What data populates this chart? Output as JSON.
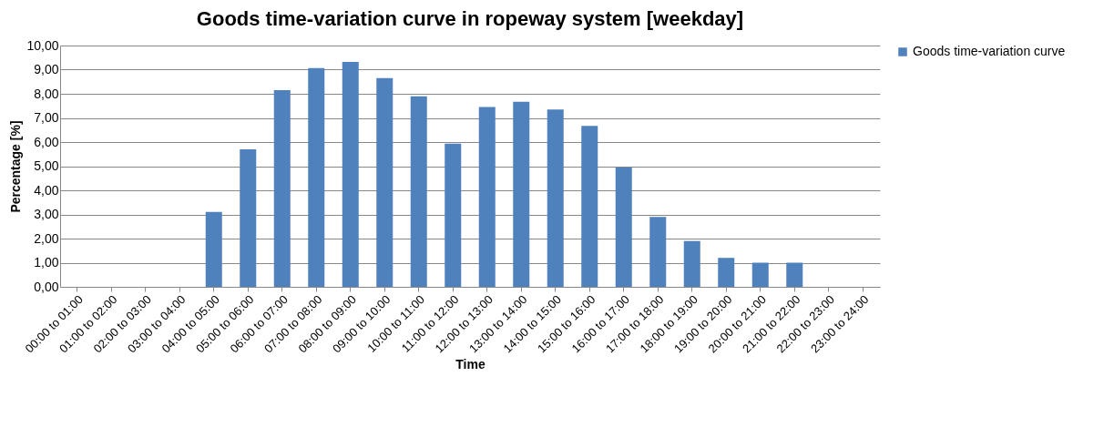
{
  "chart_data": {
    "type": "bar",
    "title": "Goods time-variation curve in ropeway system [weekday]",
    "xlabel": "Time",
    "ylabel": "Percentage [%]",
    "categories": [
      "00:00 to 01:00",
      "01:00 to 02:00",
      "02:00 to 03:00",
      "03:00 to 04:00",
      "04:00 to 05:00",
      "05:00 to 06:00",
      "06:00 to 07:00",
      "07:00 to 08:00",
      "08:00 to 09:00",
      "09:00 to 10:00",
      "10:00 to 11:00",
      "11:00 to 12:00",
      "12:00 to 13:00",
      "13:00 to 14:00",
      "14:00 to 15:00",
      "15:00 to 16:00",
      "16:00 to 17:00",
      "17:00 to 18:00",
      "18:00 to 19:00",
      "19:00 to 20:00",
      "20:00 to 21:00",
      "21:00 to 22:00",
      "22:00 to 23:00",
      "23:00 to 24:00"
    ],
    "series": [
      {
        "name": "Goods time-variation curve",
        "color": "#4f81bd",
        "values": [
          0,
          0,
          0,
          0,
          3.1,
          5.7,
          8.15,
          9.07,
          9.32,
          8.65,
          7.9,
          5.93,
          7.45,
          7.67,
          7.35,
          6.67,
          4.95,
          2.9,
          1.9,
          1.2,
          1.0,
          1.0,
          0,
          0
        ]
      }
    ],
    "ylim": [
      0,
      10
    ],
    "yticks": [
      {
        "value": 0,
        "label": "0,00"
      },
      {
        "value": 1,
        "label": "1,00"
      },
      {
        "value": 2,
        "label": "2,00"
      },
      {
        "value": 3,
        "label": "3,00"
      },
      {
        "value": 4,
        "label": "4,00"
      },
      {
        "value": 5,
        "label": "5,00"
      },
      {
        "value": 6,
        "label": "6,00"
      },
      {
        "value": 7,
        "label": "7,00"
      },
      {
        "value": 8,
        "label": "8,00"
      },
      {
        "value": 9,
        "label": "9,00"
      },
      {
        "value": 10,
        "label": "10,00"
      }
    ],
    "grid": "y",
    "legend": "right"
  }
}
